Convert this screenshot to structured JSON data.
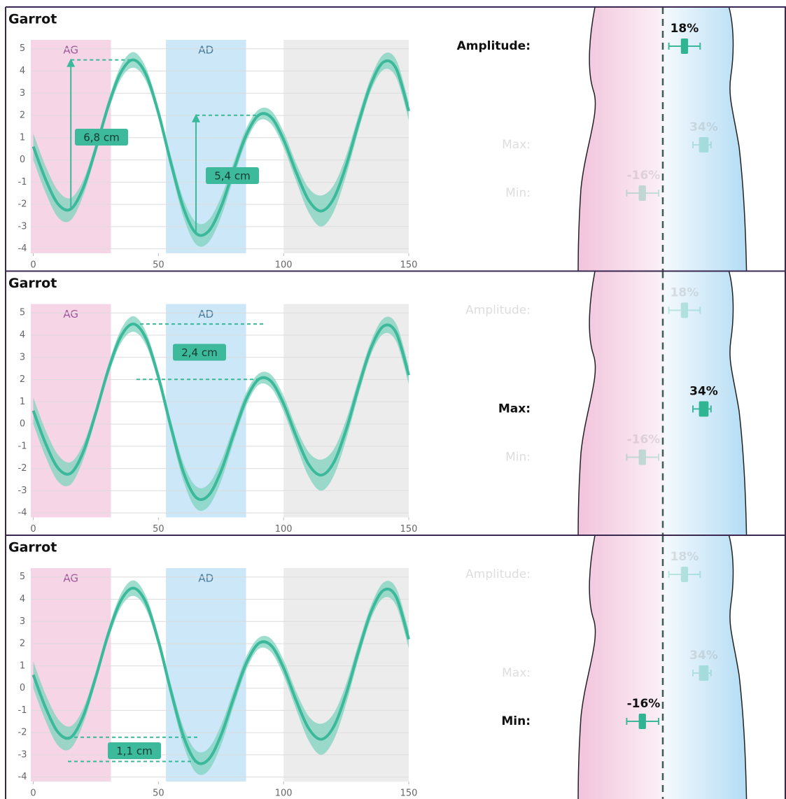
{
  "chart_data": [
    {
      "type": "line",
      "title": "Garrot",
      "x": [
        0,
        5,
        10,
        15,
        20,
        25,
        30,
        35,
        40,
        45,
        50,
        55,
        60,
        65,
        70,
        75,
        80,
        85,
        90,
        95,
        100,
        105,
        110,
        115,
        120,
        125,
        130,
        135,
        140,
        145,
        150
      ],
      "series": [
        {
          "color": "#3bb99a",
          "band_color": "#7fd3bd",
          "values": [
            0.6,
            -0.9,
            -2.0,
            -2.21,
            -1.24,
            0.51,
            2.45,
            3.94,
            4.5,
            3.85,
            2.11,
            -0.14,
            -2.17,
            -3.3,
            -3.21,
            -2.12,
            -0.47,
            1.1,
            2.01,
            1.92,
            0.91,
            -0.55,
            -1.81,
            -2.3,
            -1.74,
            -0.25,
            1.69,
            3.44,
            4.41,
            4.1,
            2.2
          ],
          "lower": [
            0.0,
            -1.5,
            -2.6,
            -2.71,
            -1.59,
            0.26,
            2.2,
            3.64,
            4.15,
            3.55,
            1.86,
            -0.44,
            -2.57,
            -3.8,
            -3.71,
            -2.57,
            -0.82,
            0.8,
            1.76,
            1.62,
            0.56,
            -0.95,
            -2.36,
            -3.0,
            -2.34,
            -0.7,
            1.34,
            3.14,
            4.06,
            3.7,
            1.8
          ],
          "upper": [
            1.2,
            -0.3,
            -1.4,
            -1.71,
            -0.89,
            0.76,
            2.7,
            4.24,
            4.85,
            4.15,
            2.36,
            0.16,
            -1.77,
            -2.8,
            -2.71,
            -1.67,
            -0.12,
            1.4,
            2.26,
            2.22,
            1.26,
            -0.15,
            -1.26,
            -1.6,
            -1.14,
            0.2,
            2.04,
            3.74,
            4.76,
            4.5,
            2.6
          ]
        }
      ],
      "xlim": [
        -1,
        150
      ],
      "ylim": [
        -4.2,
        5.4
      ],
      "xticks": [
        0,
        50,
        100,
        150
      ],
      "yticks": [
        -4,
        -3,
        -2,
        -1,
        0,
        1,
        2,
        3,
        4,
        5
      ],
      "grid": true,
      "regions": [
        {
          "label": "AG",
          "range": [
            -1,
            31
          ],
          "color": "#f6d5e7",
          "label_color": "#a0569a"
        },
        {
          "label": "AD",
          "range": [
            53,
            85
          ],
          "color": "#cbe7f8",
          "label_color": "#4a7a9a"
        },
        {
          "range": [
            100,
            150
          ],
          "color": "#ececec"
        }
      ],
      "annotations": [
        "6,8 cm",
        "5,4 cm"
      ],
      "indicators": [
        {
          "label": "Amplitude:",
          "value": 18,
          "value_label": "18%",
          "box": [
            15,
            21
          ],
          "whisker": [
            5,
            31
          ],
          "highlight": true
        },
        {
          "label": "Max:",
          "value": 34,
          "value_label": "34%",
          "box": [
            30,
            38
          ],
          "whisker": [
            25,
            40
          ],
          "highlight": false
        },
        {
          "label": "Min:",
          "value": -16,
          "value_label": "-16%",
          "box": [
            -20,
            -14
          ],
          "whisker": [
            -30,
            -3.5
          ],
          "highlight": false
        }
      ]
    },
    {
      "type": "line",
      "title": "Garrot",
      "x": [
        0,
        5,
        10,
        15,
        20,
        25,
        30,
        35,
        40,
        45,
        50,
        55,
        60,
        65,
        70,
        75,
        80,
        85,
        90,
        95,
        100,
        105,
        110,
        115,
        120,
        125,
        130,
        135,
        140,
        145,
        150
      ],
      "series": [
        {
          "color": "#3bb99a",
          "band_color": "#7fd3bd",
          "values": [
            0.6,
            -0.9,
            -2.0,
            -2.21,
            -1.24,
            0.51,
            2.45,
            3.94,
            4.5,
            3.85,
            2.11,
            -0.14,
            -2.17,
            -3.3,
            -3.21,
            -2.12,
            -0.47,
            1.1,
            2.01,
            1.92,
            0.91,
            -0.55,
            -1.81,
            -2.3,
            -1.74,
            -0.25,
            1.69,
            3.44,
            4.41,
            4.1,
            2.2
          ],
          "lower": [
            0.0,
            -1.5,
            -2.6,
            -2.71,
            -1.59,
            0.26,
            2.2,
            3.64,
            4.15,
            3.55,
            1.86,
            -0.44,
            -2.57,
            -3.8,
            -3.71,
            -2.57,
            -0.82,
            0.8,
            1.76,
            1.62,
            0.56,
            -0.95,
            -2.36,
            -3.0,
            -2.34,
            -0.7,
            1.34,
            3.14,
            4.06,
            3.7,
            1.8
          ],
          "upper": [
            1.2,
            -0.3,
            -1.4,
            -1.71,
            -0.89,
            0.76,
            2.7,
            4.24,
            4.85,
            4.15,
            2.36,
            0.16,
            -1.77,
            -2.8,
            -2.71,
            -1.67,
            -0.12,
            1.4,
            2.26,
            2.22,
            1.26,
            -0.15,
            -1.26,
            -1.6,
            -1.14,
            0.2,
            2.04,
            3.74,
            4.76,
            4.5,
            2.6
          ]
        }
      ],
      "xlim": [
        -1,
        150
      ],
      "ylim": [
        -4.2,
        5.4
      ],
      "xticks": [
        0,
        50,
        100,
        150
      ],
      "yticks": [
        -4,
        -3,
        -2,
        -1,
        0,
        1,
        2,
        3,
        4,
        5
      ],
      "grid": true,
      "regions": [
        {
          "label": "AG",
          "range": [
            -1,
            31
          ],
          "color": "#f6d5e7",
          "label_color": "#a0569a"
        },
        {
          "label": "AD",
          "range": [
            53,
            85
          ],
          "color": "#cbe7f8",
          "label_color": "#4a7a9a"
        },
        {
          "range": [
            100,
            150
          ],
          "color": "#ececec"
        }
      ],
      "annotations": [
        "2,4 cm"
      ],
      "indicators": [
        {
          "label": "Amplitude:",
          "value": 18,
          "value_label": "18%",
          "box": [
            15,
            21
          ],
          "whisker": [
            5,
            31
          ],
          "highlight": false
        },
        {
          "label": "Max:",
          "value": 34,
          "value_label": "34%",
          "box": [
            30,
            38
          ],
          "whisker": [
            25,
            40
          ],
          "highlight": true
        },
        {
          "label": "Min:",
          "value": -16,
          "value_label": "-16%",
          "box": [
            -20,
            -14
          ],
          "whisker": [
            -30,
            -3.5
          ],
          "highlight": false
        }
      ]
    },
    {
      "type": "line",
      "title": "Garrot",
      "x": [
        0,
        5,
        10,
        15,
        20,
        25,
        30,
        35,
        40,
        45,
        50,
        55,
        60,
        65,
        70,
        75,
        80,
        85,
        90,
        95,
        100,
        105,
        110,
        115,
        120,
        125,
        130,
        135,
        140,
        145,
        150
      ],
      "series": [
        {
          "color": "#3bb99a",
          "band_color": "#7fd3bd",
          "values": [
            0.6,
            -0.9,
            -2.0,
            -2.21,
            -1.24,
            0.51,
            2.45,
            3.94,
            4.5,
            3.85,
            2.11,
            -0.14,
            -2.17,
            -3.3,
            -3.21,
            -2.12,
            -0.47,
            1.1,
            2.01,
            1.92,
            0.91,
            -0.55,
            -1.81,
            -2.3,
            -1.74,
            -0.25,
            1.69,
            3.44,
            4.41,
            4.1,
            2.2
          ],
          "lower": [
            0.0,
            -1.5,
            -2.6,
            -2.71,
            -1.59,
            0.26,
            2.2,
            3.64,
            4.15,
            3.55,
            1.86,
            -0.44,
            -2.57,
            -3.8,
            -3.71,
            -2.57,
            -0.82,
            0.8,
            1.76,
            1.62,
            0.56,
            -0.95,
            -2.36,
            -3.0,
            -2.34,
            -0.7,
            1.34,
            3.14,
            4.06,
            3.7,
            1.8
          ],
          "upper": [
            1.2,
            -0.3,
            -1.4,
            -1.71,
            -0.89,
            0.76,
            2.7,
            4.24,
            4.85,
            4.15,
            2.36,
            0.16,
            -1.77,
            -2.8,
            -2.71,
            -1.67,
            -0.12,
            1.4,
            2.26,
            2.22,
            1.26,
            -0.15,
            -1.26,
            -1.6,
            -1.14,
            0.2,
            2.04,
            3.74,
            4.76,
            4.5,
            2.6
          ]
        }
      ],
      "xlim": [
        -1,
        150
      ],
      "ylim": [
        -4.2,
        5.4
      ],
      "xticks": [
        0,
        50,
        100,
        150
      ],
      "yticks": [
        -4,
        -3,
        -2,
        -1,
        0,
        1,
        2,
        3,
        4,
        5
      ],
      "grid": true,
      "regions": [
        {
          "label": "AG",
          "range": [
            -1,
            31
          ],
          "color": "#f6d5e7",
          "label_color": "#a0569a"
        },
        {
          "label": "AD",
          "range": [
            53,
            85
          ],
          "color": "#cbe7f8",
          "label_color": "#4a7a9a"
        },
        {
          "range": [
            100,
            150
          ],
          "color": "#ececec"
        }
      ],
      "annotations": [
        "1,1 cm"
      ],
      "indicators": [
        {
          "label": "Amplitude:",
          "value": 18,
          "value_label": "18%",
          "box": [
            15,
            21
          ],
          "whisker": [
            5,
            31
          ],
          "highlight": false
        },
        {
          "label": "Max:",
          "value": 34,
          "value_label": "34%",
          "box": [
            30,
            38
          ],
          "whisker": [
            25,
            40
          ],
          "highlight": false
        },
        {
          "label": "Min:",
          "value": -16,
          "value_label": "-16%",
          "box": [
            -20,
            -14
          ],
          "whisker": [
            -30,
            -3.5
          ],
          "highlight": true
        }
      ]
    }
  ]
}
